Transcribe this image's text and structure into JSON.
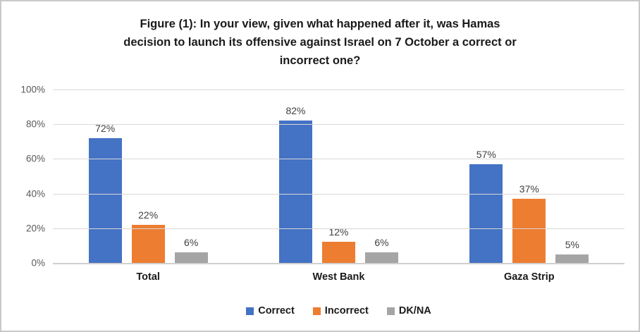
{
  "chart_data": {
    "type": "bar",
    "title": "Figure (1): In your view, given what happened after it, was Hamas decision to launch its offensive against Israel on 7 October a correct or incorrect one?",
    "title_lines": [
      "Figure (1): In your view, given what happened after it, was Hamas",
      "decision to launch its offensive against Israel on 7 October a correct or",
      "incorrect one?"
    ],
    "categories": [
      "Total",
      "West Bank",
      "Gaza Strip"
    ],
    "series": [
      {
        "name": "Correct",
        "color": "#4472C4",
        "values": [
          72,
          82,
          57
        ]
      },
      {
        "name": "Incorrect",
        "color": "#ED7D31",
        "values": [
          22,
          12,
          37
        ]
      },
      {
        "name": "DK/NA",
        "color": "#A5A5A5",
        "values": [
          6,
          6,
          5
        ]
      }
    ],
    "value_suffix": "%",
    "ylim": [
      0,
      100
    ],
    "yticks": [
      "0%",
      "20%",
      "40%",
      "60%",
      "80%",
      "100%"
    ],
    "grid": true,
    "legend_position": "bottom",
    "colors": {
      "gridline": "#d9d9d9",
      "axis_line": "#cfcfcf",
      "tick_label": "#595959",
      "value_label": "#404040",
      "text": "#1a1a1a"
    }
  }
}
